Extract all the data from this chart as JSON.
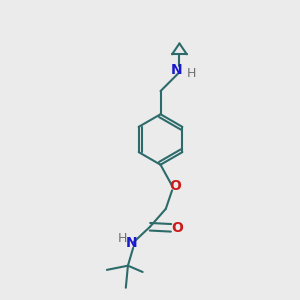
{
  "background_color": "#ebebeb",
  "bond_color": "#2d6b6b",
  "N_color": "#1a1acc",
  "O_color": "#cc1a1a",
  "H_color": "#707070",
  "line_width": 1.5,
  "figsize": [
    3.0,
    3.0
  ],
  "dpi": 100,
  "xlim": [
    0,
    10
  ],
  "ylim": [
    0,
    14
  ]
}
